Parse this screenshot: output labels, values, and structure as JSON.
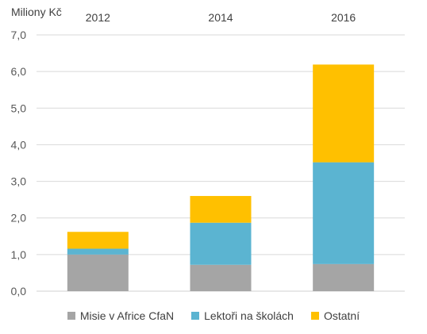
{
  "chart_data": {
    "type": "bar",
    "stacked": true,
    "ylabel": "Miliony Kč",
    "categories": [
      "2012",
      "2014",
      "2016"
    ],
    "category_axis_position": "top",
    "ylim": [
      0,
      7
    ],
    "yticks": [
      "0,0",
      "1,0",
      "2,0",
      "3,0",
      "4,0",
      "5,0",
      "6,0",
      "7,0"
    ],
    "grid": true,
    "legend_position": "bottom",
    "series": [
      {
        "name": "Misie v Africe CfaN",
        "color": "#a5a5a5",
        "values": [
          1.0,
          0.72,
          0.74
        ]
      },
      {
        "name": "Lektoři na školách",
        "color": "#5bb4d1",
        "values": [
          0.16,
          1.15,
          2.78
        ]
      },
      {
        "name": "Ostatní",
        "color": "#ffc000",
        "values": [
          0.46,
          0.73,
          2.67
        ]
      }
    ]
  }
}
